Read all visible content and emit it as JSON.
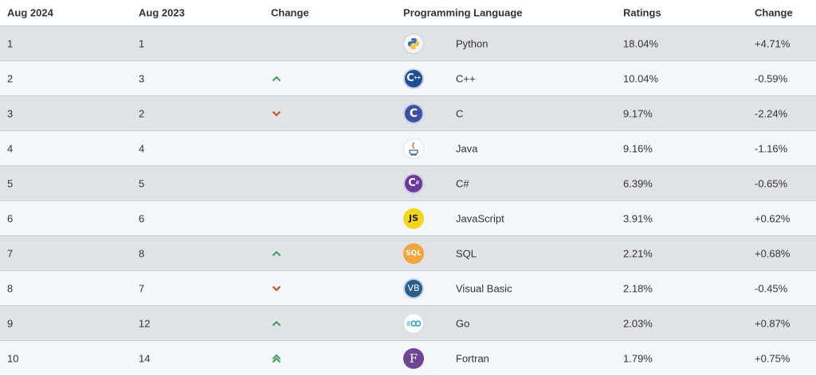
{
  "headers": {
    "current": "Aug 2024",
    "previous": "Aug 2023",
    "change": "Change",
    "language": "Programming Language",
    "ratings": "Ratings",
    "rating_change": "Change"
  },
  "colors": {
    "up": "#3a9e55",
    "down": "#d9431e",
    "row_odd": "#dfe3e6",
    "row_even": "#f3f7fa"
  },
  "rows": [
    {
      "current": "1",
      "previous": "1",
      "trend": "none",
      "icon": "python-logo-icon",
      "language": "Python",
      "rating": "18.04%",
      "change": "+4.71%"
    },
    {
      "current": "2",
      "previous": "3",
      "trend": "up",
      "icon": "cpp-logo-icon",
      "language": "C++",
      "rating": "10.04%",
      "change": "-0.59%"
    },
    {
      "current": "3",
      "previous": "2",
      "trend": "down",
      "icon": "c-logo-icon",
      "language": "C",
      "rating": "9.17%",
      "change": "-2.24%"
    },
    {
      "current": "4",
      "previous": "4",
      "trend": "none",
      "icon": "java-logo-icon",
      "language": "Java",
      "rating": "9.16%",
      "change": "-1.16%"
    },
    {
      "current": "5",
      "previous": "5",
      "trend": "none",
      "icon": "csharp-logo-icon",
      "language": "C#",
      "rating": "6.39%",
      "change": "-0.65%"
    },
    {
      "current": "6",
      "previous": "6",
      "trend": "none",
      "icon": "javascript-logo-icon",
      "language": "JavaScript",
      "rating": "3.91%",
      "change": "+0.62%"
    },
    {
      "current": "7",
      "previous": "8",
      "trend": "up",
      "icon": "sql-logo-icon",
      "language": "SQL",
      "rating": "2.21%",
      "change": "+0.68%"
    },
    {
      "current": "8",
      "previous": "7",
      "trend": "down",
      "icon": "visual-basic-logo-icon",
      "language": "Visual Basic",
      "rating": "2.18%",
      "change": "-0.45%"
    },
    {
      "current": "9",
      "previous": "12",
      "trend": "up",
      "icon": "go-logo-icon",
      "language": "Go",
      "rating": "2.03%",
      "change": "+0.87%"
    },
    {
      "current": "10",
      "previous": "14",
      "trend": "double-up",
      "icon": "fortran-logo-icon",
      "language": "Fortran",
      "rating": "1.79%",
      "change": "+0.75%"
    }
  ]
}
